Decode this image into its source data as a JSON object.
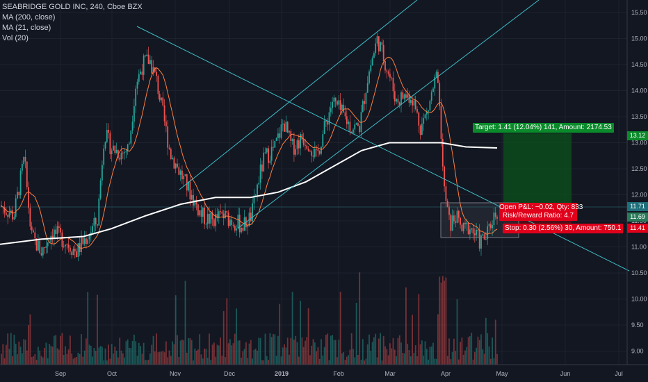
{
  "legend": {
    "symbol": "SEABRIDGE GOLD INC, 240, Cboe BZX",
    "ma200": "MA (200, close)",
    "ma21": "MA (21, close)",
    "vol": "Vol (20)"
  },
  "price_axis": [
    "15.50",
    "15.00",
    "14.50",
    "14.00",
    "13.50",
    "13.00",
    "12.50",
    "12.00",
    "11.50",
    "11.00",
    "10.50",
    "10.00",
    "9.50",
    "9.00"
  ],
  "time_axis": [
    "Sep",
    "Oct",
    "Nov",
    "Dec",
    "2019",
    "Feb",
    "Mar",
    "Apr",
    "May",
    "Jun",
    "Jul"
  ],
  "price_tags": {
    "target": "13.12",
    "current": "11.71",
    "ma": "11.69",
    "stop": "11.41"
  },
  "position": {
    "target_label": "Target: 1.41 (12.04%) 141, Amount: 2174.53",
    "open_pl": "Open P&L: −0.02, Qty: 833",
    "risk_reward": "Risk/Reward Ratio: 4.7",
    "stop_label": "Stop: 0.30 (2.56%) 30, Amount: 750.1"
  },
  "colors": {
    "background": "#131722",
    "up": "#26a69a",
    "down": "#ef5350",
    "ma200": "#ffffff",
    "ma21": "#ff7f3f",
    "trendline": "#3dbdc6",
    "target": "#0a8a2a",
    "stop": "#e0001b"
  }
}
